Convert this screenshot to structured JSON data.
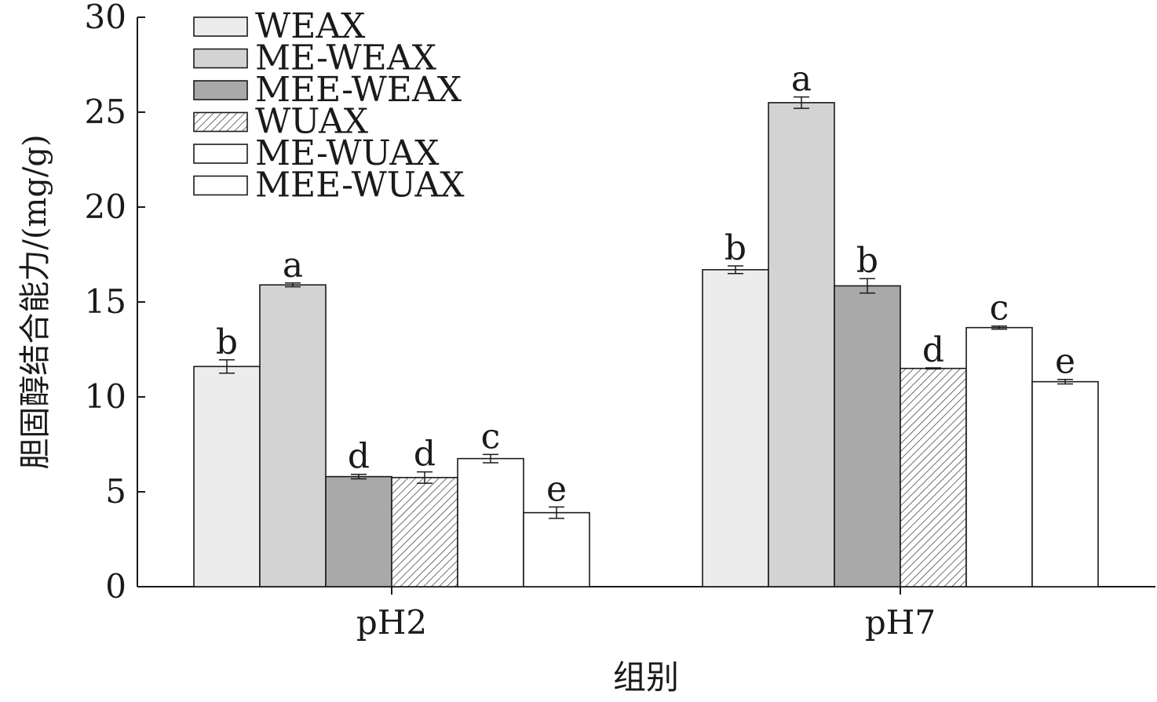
{
  "chart_data": {
    "type": "bar",
    "xlabel": "组别",
    "ylabel": "胆固醇结合能力/(mg/g)",
    "ylim": [
      0,
      30
    ],
    "yticks": [
      0,
      5,
      10,
      15,
      20,
      25,
      30
    ],
    "categories": [
      "pH2",
      "pH7"
    ],
    "grid": false,
    "legend": "top-left",
    "series": [
      {
        "name": "WEAX",
        "fill": "#ececec",
        "pattern": "solid",
        "values": [
          11.6,
          16.7
        ],
        "errors": [
          0.35,
          0.2
        ],
        "letters": [
          "b",
          "b"
        ]
      },
      {
        "name": "ME-WEAX",
        "fill": "#d3d3d3",
        "pattern": "solid",
        "values": [
          15.9,
          25.5
        ],
        "errors": [
          0.1,
          0.3
        ],
        "letters": [
          "a",
          "a"
        ]
      },
      {
        "name": "MEE-WEAX",
        "fill": "#a9a9a9",
        "pattern": "solid",
        "values": [
          5.8,
          15.85
        ],
        "errors": [
          0.12,
          0.38
        ],
        "letters": [
          "d",
          "b"
        ]
      },
      {
        "name": "WUAX",
        "fill": "#ffffff",
        "pattern": "hatch",
        "values": [
          5.75,
          11.5
        ],
        "errors": [
          0.3,
          0.03
        ],
        "letters": [
          "d",
          "d"
        ]
      },
      {
        "name": "ME-WUAX",
        "fill": "#ffffff",
        "pattern": "solid",
        "values": [
          6.75,
          13.65
        ],
        "errors": [
          0.22,
          0.08
        ],
        "letters": [
          "c",
          "c"
        ]
      },
      {
        "name": "MEE-WUAX",
        "fill": "#ffffff",
        "pattern": "solid",
        "values": [
          3.9,
          10.8
        ],
        "errors": [
          0.3,
          0.12
        ],
        "letters": [
          "e",
          "e"
        ]
      }
    ]
  }
}
